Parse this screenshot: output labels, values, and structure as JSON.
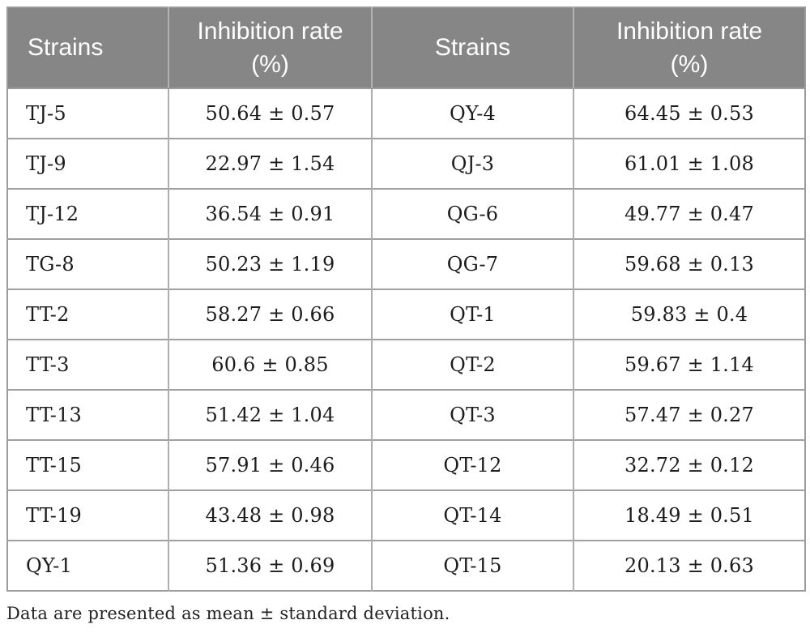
{
  "table": {
    "headers": [
      "Strains",
      "Inhibition rate (%)",
      "Strains",
      "Inhibition rate (%)"
    ],
    "rows": [
      [
        "TJ-5",
        "50.64 ± 0.57",
        "QY-4",
        "64.45 ± 0.53"
      ],
      [
        "TJ-9",
        "22.97 ± 1.54",
        "QJ-3",
        "61.01 ± 1.08"
      ],
      [
        "TJ-12",
        "36.54 ± 0.91",
        "QG-6",
        "49.77 ± 0.47"
      ],
      [
        "TG-8",
        "50.23 ± 1.19",
        "QG-7",
        "59.68 ± 0.13"
      ],
      [
        "TT-2",
        "58.27 ± 0.66",
        "QT-1",
        "59.83 ± 0.4"
      ],
      [
        "TT-3",
        "60.6 ± 0.85",
        "QT-2",
        "59.67 ± 1.14"
      ],
      [
        "TT-13",
        "51.42 ± 1.04",
        "QT-3",
        "57.47 ± 0.27"
      ],
      [
        "TT-15",
        "57.91 ± 0.46",
        "QT-12",
        "32.72 ± 0.12"
      ],
      [
        "TT-19",
        "43.48 ± 0.98",
        "QT-14",
        "18.49 ± 0.51"
      ],
      [
        "QY-1",
        "51.36 ± 0.69",
        "QT-15",
        "20.13 ± 0.63"
      ]
    ],
    "footnote": "Data are presented as mean ± standard deviation."
  },
  "colors": {
    "header_bg": "#868686",
    "header_text": "#ffffff",
    "body_text": "#1c1c1c",
    "row_border": "#a0a0a0",
    "column_divider": "#adadad",
    "header_divider": "#b2b2b2",
    "outer_border": "#9c9c9c",
    "page_bg": "#ffffff"
  }
}
